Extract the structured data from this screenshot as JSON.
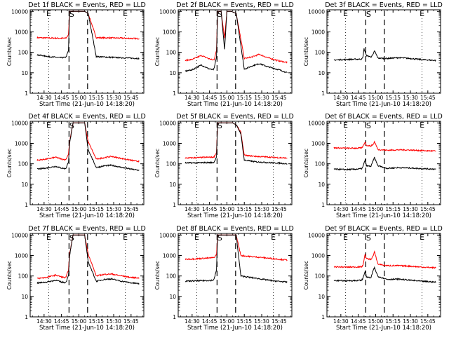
{
  "figure": {
    "x_axis_label": "Start Time (21-Jun-10 14:18:20)",
    "y_axis_label": "Counts/sec",
    "y_scale": "log",
    "ylim": [
      1,
      12000
    ],
    "y_ticks": [
      "1",
      "10",
      "100",
      "1000",
      "10000"
    ],
    "x_ticks": [
      "14:30",
      "14:45",
      "15:00",
      "15:15",
      "15:30",
      "15:45"
    ],
    "markers": {
      "start": "S",
      "end": "E"
    },
    "colors": {
      "events": "#000000",
      "lld": "#ff0000"
    },
    "grid": false
  },
  "chart_data": [
    {
      "type": "line",
      "title": "Det 1f BLACK = Events, RED = LLD",
      "series": [
        {
          "name": "Events",
          "color": "#000000",
          "x": [
            "14:24",
            "14:36",
            "14:44",
            "14:48",
            "14:49",
            "14:51",
            "14:52",
            "14:55",
            "14:58",
            "15:02",
            "15:05",
            "15:08",
            "15:15",
            "15:25",
            "15:35",
            "15:45",
            "15:52"
          ],
          "y": [
            75,
            60,
            55,
            56,
            60,
            120,
            10000,
            10000,
            10000,
            10000,
            10000,
            8000,
            62,
            58,
            55,
            52,
            50
          ]
        },
        {
          "name": "LLD",
          "color": "#ff0000",
          "x": [
            "14:24",
            "14:36",
            "14:44",
            "14:48",
            "14:49",
            "14:51",
            "14:52",
            "14:55",
            "14:58",
            "15:02",
            "15:05",
            "15:08",
            "15:15",
            "15:25",
            "15:35",
            "15:45",
            "15:52"
          ],
          "y": [
            520,
            500,
            490,
            490,
            510,
            700,
            10000,
            10000,
            10000,
            10000,
            10000,
            8000,
            520,
            510,
            500,
            480,
            470
          ]
        }
      ]
    },
    {
      "type": "line",
      "title": "Det 2f BLACK = Events, RED = LLD",
      "series": [
        {
          "name": "Events",
          "color": "#000000",
          "x": [
            "14:24",
            "14:30",
            "14:38",
            "14:44",
            "14:48",
            "14:49",
            "14:51",
            "14:52",
            "14:55",
            "14:58",
            "15:00",
            "15:04",
            "15:08",
            "15:15",
            "15:22",
            "15:28",
            "15:35",
            "15:45",
            "15:52"
          ],
          "y": [
            12,
            14,
            24,
            16,
            14,
            16,
            60,
            10000,
            10000,
            140,
            10000,
            10000,
            8000,
            15,
            22,
            28,
            20,
            14,
            10
          ]
        },
        {
          "name": "LLD",
          "color": "#ff0000",
          "x": [
            "14:24",
            "14:30",
            "14:38",
            "14:44",
            "14:48",
            "14:49",
            "14:51",
            "14:52",
            "14:55",
            "14:58",
            "15:00",
            "15:04",
            "15:08",
            "15:15",
            "15:22",
            "15:28",
            "15:35",
            "15:45",
            "15:52"
          ],
          "y": [
            40,
            45,
            70,
            50,
            42,
            45,
            120,
            10000,
            10000,
            500,
            10000,
            10000,
            8000,
            50,
            60,
            80,
            55,
            38,
            32
          ]
        }
      ]
    },
    {
      "type": "line",
      "title": "Det 3f BLACK = Events, RED = LLD",
      "series": [
        {
          "name": "Events",
          "color": "#000000",
          "x": [
            "14:24",
            "14:35",
            "14:44",
            "14:48",
            "14:49",
            "14:50",
            "14:52",
            "14:56",
            "14:58",
            "14:59",
            "15:02",
            "15:10",
            "15:20",
            "15:30",
            "15:40",
            "15:52"
          ],
          "y": [
            42,
            45,
            46,
            47,
            55,
            150,
            70,
            60,
            80,
            120,
            52,
            50,
            55,
            50,
            44,
            40
          ]
        }
      ]
    },
    {
      "type": "line",
      "title": "Det 4f BLACK = Events, RED = LLD",
      "series": [
        {
          "name": "Events",
          "color": "#000000",
          "x": [
            "14:24",
            "14:32",
            "14:40",
            "14:45",
            "14:48",
            "14:49",
            "14:51",
            "14:52",
            "14:55",
            "14:58",
            "15:02",
            "15:05",
            "15:08",
            "15:15",
            "15:22",
            "15:28",
            "15:35",
            "15:45",
            "15:52"
          ],
          "y": [
            55,
            62,
            75,
            62,
            58,
            62,
            120,
            1000,
            10000,
            10000,
            10000,
            10000,
            500,
            65,
            80,
            85,
            70,
            55,
            48
          ]
        },
        {
          "name": "LLD",
          "color": "#ff0000",
          "x": [
            "14:24",
            "14:32",
            "14:40",
            "14:45",
            "14:48",
            "14:49",
            "14:51",
            "14:52",
            "14:55",
            "14:58",
            "15:02",
            "15:05",
            "15:08",
            "15:15",
            "15:22",
            "15:28",
            "15:35",
            "15:45",
            "15:52"
          ],
          "y": [
            150,
            170,
            210,
            170,
            160,
            170,
            300,
            1200,
            10000,
            10000,
            10000,
            10000,
            1200,
            170,
            200,
            230,
            190,
            150,
            130
          ]
        }
      ]
    },
    {
      "type": "line",
      "title": "Det 5f BLACK = Events, RED = LLD",
      "series": [
        {
          "name": "Events",
          "color": "#000000",
          "x": [
            "14:24",
            "14:35",
            "14:44",
            "14:48",
            "14:49",
            "14:51",
            "14:52",
            "14:55",
            "14:58",
            "15:02",
            "15:05",
            "15:08",
            "15:12",
            "15:15",
            "15:25",
            "15:35",
            "15:45",
            "15:52"
          ],
          "y": [
            110,
            112,
            115,
            115,
            120,
            220,
            10000,
            10000,
            10000,
            10000,
            10000,
            8000,
            3000,
            150,
            125,
            115,
            108,
            100
          ]
        },
        {
          "name": "LLD",
          "color": "#ff0000",
          "x": [
            "14:24",
            "14:35",
            "14:44",
            "14:48",
            "14:49",
            "14:51",
            "14:52",
            "14:55",
            "14:58",
            "15:02",
            "15:05",
            "15:08",
            "15:12",
            "15:15",
            "15:25",
            "15:35",
            "15:45",
            "15:52"
          ],
          "y": [
            190,
            200,
            210,
            210,
            220,
            350,
            10000,
            10000,
            10000,
            10000,
            10000,
            8000,
            3500,
            260,
            230,
            215,
            200,
            190
          ]
        }
      ]
    },
    {
      "type": "line",
      "title": "Det 6f BLACK = Events, RED = LLD",
      "series": [
        {
          "name": "Events",
          "color": "#000000",
          "x": [
            "14:24",
            "14:35",
            "14:44",
            "14:48",
            "14:49",
            "14:51",
            "14:52",
            "14:56",
            "14:58",
            "14:59",
            "15:02",
            "15:10",
            "15:20",
            "15:30",
            "15:40",
            "15:52"
          ],
          "y": [
            55,
            52,
            55,
            58,
            70,
            160,
            80,
            75,
            150,
            200,
            80,
            60,
            65,
            62,
            58,
            55
          ]
        },
        {
          "name": "LLD",
          "color": "#ff0000",
          "x": [
            "14:24",
            "14:35",
            "14:44",
            "14:48",
            "14:49",
            "14:51",
            "14:52",
            "14:56",
            "14:58",
            "14:59",
            "15:02",
            "15:10",
            "15:20",
            "15:30",
            "15:40",
            "15:52"
          ],
          "y": [
            600,
            580,
            580,
            600,
            700,
            1200,
            800,
            750,
            900,
            1200,
            500,
            460,
            480,
            470,
            440,
            420
          ]
        }
      ]
    },
    {
      "type": "line",
      "title": "Det 7f BLACK = Events, RED = LLD",
      "series": [
        {
          "name": "Events",
          "color": "#000000",
          "x": [
            "14:24",
            "14:32",
            "14:40",
            "14:45",
            "14:48",
            "14:49",
            "14:51",
            "14:52",
            "14:55",
            "14:58",
            "15:02",
            "15:05",
            "15:08",
            "15:15",
            "15:22",
            "15:28",
            "15:35",
            "15:45",
            "15:52"
          ],
          "y": [
            45,
            50,
            62,
            50,
            48,
            50,
            110,
            1000,
            10000,
            10000,
            10000,
            10000,
            500,
            55,
            68,
            72,
            58,
            46,
            42
          ]
        },
        {
          "name": "LLD",
          "color": "#ff0000",
          "x": [
            "14:24",
            "14:32",
            "14:40",
            "14:45",
            "14:48",
            "14:49",
            "14:51",
            "14:52",
            "14:55",
            "14:58",
            "15:02",
            "15:05",
            "15:08",
            "15:15",
            "15:22",
            "15:28",
            "15:35",
            "15:45",
            "15:52"
          ],
          "y": [
            75,
            85,
            110,
            90,
            82,
            88,
            200,
            1200,
            10000,
            10000,
            10000,
            10000,
            1200,
            100,
            120,
            125,
            105,
            85,
            80
          ]
        }
      ]
    },
    {
      "type": "line",
      "title": "Det 8f BLACK = Events, RED = LLD",
      "series": [
        {
          "name": "Events",
          "color": "#000000",
          "x": [
            "14:24",
            "14:35",
            "14:44",
            "14:48",
            "14:49",
            "14:51",
            "14:52",
            "14:55",
            "14:58",
            "15:02",
            "15:05",
            "15:08",
            "15:12",
            "15:20",
            "15:30",
            "15:40",
            "15:52"
          ],
          "y": [
            55,
            58,
            60,
            62,
            70,
            200,
            10000,
            10000,
            10000,
            10000,
            10000,
            10000,
            100,
            85,
            70,
            58,
            50
          ]
        },
        {
          "name": "LLD",
          "color": "#ff0000",
          "x": [
            "14:24",
            "14:35",
            "14:44",
            "14:48",
            "14:49",
            "14:51",
            "14:52",
            "14:55",
            "14:58",
            "15:02",
            "15:05",
            "15:08",
            "15:12",
            "15:20",
            "15:30",
            "15:40",
            "15:52"
          ],
          "y": [
            650,
            700,
            750,
            780,
            800,
            1100,
            10000,
            10000,
            10000,
            10000,
            10000,
            10000,
            1000,
            900,
            800,
            700,
            600
          ]
        }
      ]
    },
    {
      "type": "line",
      "title": "Det 9f BLACK = Events, RED = LLD",
      "series": [
        {
          "name": "Events",
          "color": "#000000",
          "x": [
            "14:24",
            "14:35",
            "14:44",
            "14:48",
            "14:49",
            "14:51",
            "14:52",
            "14:56",
            "14:58",
            "14:59",
            "15:02",
            "15:10",
            "15:20",
            "15:30",
            "15:40",
            "15:52"
          ],
          "y": [
            60,
            58,
            60,
            62,
            75,
            180,
            90,
            80,
            200,
            250,
            95,
            68,
            70,
            62,
            55,
            50
          ]
        },
        {
          "name": "LLD",
          "color": "#ff0000",
          "x": [
            "14:24",
            "14:35",
            "14:44",
            "14:48",
            "14:49",
            "14:51",
            "14:52",
            "14:56",
            "14:58",
            "14:59",
            "15:02",
            "15:10",
            "15:20",
            "15:30",
            "15:40",
            "15:52"
          ],
          "y": [
            280,
            270,
            275,
            280,
            320,
            1200,
            700,
            650,
            1000,
            1500,
            380,
            320,
            320,
            300,
            270,
            250
          ]
        }
      ]
    }
  ]
}
